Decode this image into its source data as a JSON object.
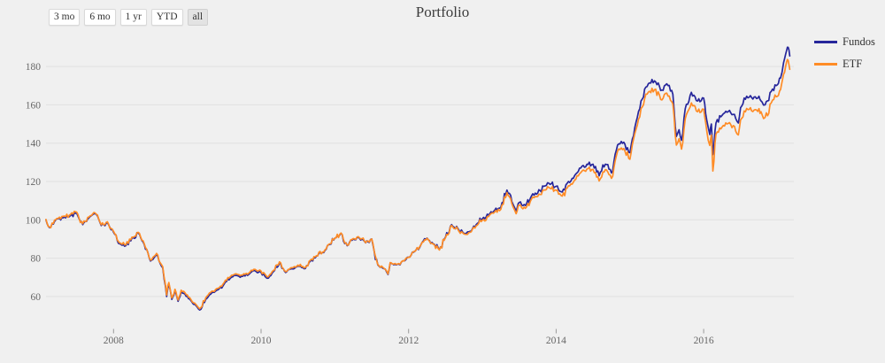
{
  "page": {
    "background": "#f0f0f0",
    "text_color": "#333333",
    "gridline_color": "#e0e0e0",
    "axis_label_color": "#666666"
  },
  "title": "Portfolio",
  "range_selector": {
    "buttons": [
      {
        "label": "3 mo",
        "active": false
      },
      {
        "label": "6 mo",
        "active": false
      },
      {
        "label": "1 yr",
        "active": false
      },
      {
        "label": "YTD",
        "active": false
      },
      {
        "label": "all",
        "active": true
      }
    ]
  },
  "legend": [
    {
      "label": "Fundos",
      "color": "#26269b"
    },
    {
      "label": "ETF",
      "color": "#ff8c26"
    }
  ],
  "chart_data": {
    "type": "line",
    "title": "Portfolio",
    "xlabel": "",
    "ylabel": "",
    "x_unit": "year (time axis, ~daily data 2007-2017)",
    "xlim": [
      2007.05,
      2017.25
    ],
    "ylim": [
      48,
      192
    ],
    "y_ticks": [
      60,
      80,
      100,
      120,
      140,
      160,
      180
    ],
    "x_ticks": [
      2008,
      2010,
      2012,
      2014,
      2016
    ],
    "grid": "horizontal-only",
    "legend_position": "top-right",
    "x": [
      2007.083,
      2007.13,
      2007.167,
      2007.25,
      2007.333,
      2007.417,
      2007.5,
      2007.583,
      2007.667,
      2007.75,
      2007.833,
      2007.917,
      2008.0,
      2008.083,
      2008.167,
      2008.25,
      2008.333,
      2008.417,
      2008.5,
      2008.583,
      2008.667,
      2008.72,
      2008.75,
      2008.79,
      2008.833,
      2008.875,
      2008.917,
      2009.0,
      2009.083,
      2009.167,
      2009.25,
      2009.333,
      2009.417,
      2009.5,
      2009.583,
      2009.667,
      2009.75,
      2009.833,
      2009.917,
      2010.0,
      2010.083,
      2010.167,
      2010.25,
      2010.333,
      2010.417,
      2010.5,
      2010.583,
      2010.667,
      2010.75,
      2010.833,
      2010.917,
      2011.0,
      2011.083,
      2011.167,
      2011.25,
      2011.333,
      2011.417,
      2011.5,
      2011.583,
      2011.667,
      2011.72,
      2011.75,
      2011.833,
      2011.917,
      2012.0,
      2012.083,
      2012.167,
      2012.25,
      2012.333,
      2012.417,
      2012.5,
      2012.583,
      2012.667,
      2012.75,
      2012.833,
      2012.917,
      2013.0,
      2013.083,
      2013.167,
      2013.25,
      2013.333,
      2013.417,
      2013.458,
      2013.5,
      2013.583,
      2013.667,
      2013.75,
      2013.833,
      2013.917,
      2014.0,
      2014.083,
      2014.167,
      2014.25,
      2014.333,
      2014.417,
      2014.5,
      2014.55,
      2014.583,
      2014.667,
      2014.75,
      2014.833,
      2014.917,
      2015.0,
      2015.083,
      2015.167,
      2015.25,
      2015.333,
      2015.417,
      2015.5,
      2015.583,
      2015.63,
      2015.667,
      2015.7,
      2015.75,
      2015.833,
      2015.917,
      2016.0,
      2016.042,
      2016.083,
      2016.104,
      2016.125,
      2016.167,
      2016.25,
      2016.333,
      2016.417,
      2016.47,
      2016.5,
      2016.583,
      2016.667,
      2016.75,
      2016.792,
      2016.833,
      2016.917,
      2017.0,
      2017.042,
      2017.083,
      2017.125,
      2017.146,
      2017.167
    ],
    "series": [
      {
        "name": "Fundos",
        "color": "#26269b",
        "values": [
          100.0,
          96.0,
          98.0,
          100.5,
          101.5,
          102.3,
          103.5,
          97.5,
          101.0,
          103.2,
          97.0,
          98.5,
          93.5,
          87.5,
          86.5,
          90.5,
          93.0,
          87.0,
          78.5,
          82.0,
          75.0,
          60.0,
          66.5,
          58.5,
          63.0,
          57.5,
          62.5,
          60.0,
          56.0,
          53.0,
          58.5,
          62.0,
          63.5,
          66.5,
          69.5,
          71.0,
          70.5,
          71.5,
          73.5,
          72.5,
          69.5,
          73.0,
          77.5,
          72.5,
          74.5,
          76.0,
          74.5,
          78.5,
          81.0,
          83.0,
          87.0,
          90.5,
          93.0,
          86.5,
          90.0,
          90.5,
          88.0,
          90.0,
          76.5,
          74.5,
          71.5,
          77.5,
          76.5,
          78.5,
          80.5,
          83.5,
          87.0,
          90.5,
          87.5,
          84.5,
          91.0,
          97.5,
          95.5,
          93.0,
          94.0,
          97.5,
          100.5,
          102.5,
          105.0,
          106.5,
          115.5,
          108.0,
          104.5,
          109.0,
          107.5,
          112.5,
          114.0,
          117.5,
          118.5,
          117.5,
          114.5,
          120.0,
          123.0,
          127.0,
          129.0,
          129.0,
          125.0,
          123.0,
          129.0,
          124.5,
          139.0,
          140.5,
          135.0,
          151.0,
          163.0,
          171.0,
          172.5,
          167.5,
          171.0,
          165.5,
          143.5,
          147.0,
          141.5,
          158.0,
          166.5,
          162.0,
          163.5,
          152.0,
          144.5,
          150.0,
          134.0,
          150.5,
          154.5,
          156.5,
          155.0,
          150.5,
          158.5,
          164.5,
          163.0,
          164.5,
          161.5,
          160.0,
          167.0,
          170.5,
          174.0,
          182.0,
          188.5,
          190.0,
          185.5
        ]
      },
      {
        "name": "ETF",
        "color": "#ff8c26",
        "values": [
          100.2,
          96.4,
          98.3,
          100.8,
          102.0,
          102.8,
          104.0,
          98.0,
          101.5,
          103.6,
          97.4,
          99.0,
          94.0,
          88.0,
          87.0,
          91.0,
          93.5,
          87.4,
          79.0,
          82.5,
          75.5,
          60.8,
          67.3,
          59.2,
          63.8,
          58.2,
          63.3,
          60.8,
          56.7,
          53.6,
          59.3,
          62.8,
          64.3,
          67.3,
          70.3,
          71.8,
          71.2,
          72.2,
          74.2,
          73.2,
          70.2,
          73.6,
          78.1,
          73.0,
          75.0,
          76.4,
          74.9,
          78.9,
          81.3,
          83.2,
          87.2,
          90.6,
          93.1,
          86.8,
          90.2,
          90.7,
          88.1,
          90.0,
          76.7,
          74.7,
          71.8,
          77.7,
          76.7,
          78.6,
          80.5,
          83.5,
          86.9,
          90.3,
          87.3,
          84.3,
          90.7,
          97.1,
          95.1,
          92.6,
          93.5,
          96.9,
          99.8,
          101.7,
          104.1,
          105.5,
          114.2,
          106.7,
          103.2,
          107.6,
          106.0,
          110.9,
          112.2,
          115.6,
          116.5,
          115.4,
          112.4,
          117.8,
          120.7,
          124.6,
          126.5,
          126.3,
          122.3,
          120.3,
          126.2,
          121.6,
          135.8,
          137.2,
          131.6,
          147.3,
          158.9,
          166.6,
          167.9,
          162.8,
          166.1,
          160.5,
          139.0,
          142.3,
          136.9,
          152.8,
          161.0,
          156.4,
          157.7,
          146.4,
          138.8,
          144.2,
          125.5,
          144.6,
          148.4,
          150.3,
          148.8,
          144.3,
          152.2,
          158.1,
          156.5,
          158.0,
          154.9,
          153.4,
          161.0,
          164.5,
          168.0,
          176.0,
          182.5,
          183.2,
          178.5
        ]
      }
    ]
  }
}
